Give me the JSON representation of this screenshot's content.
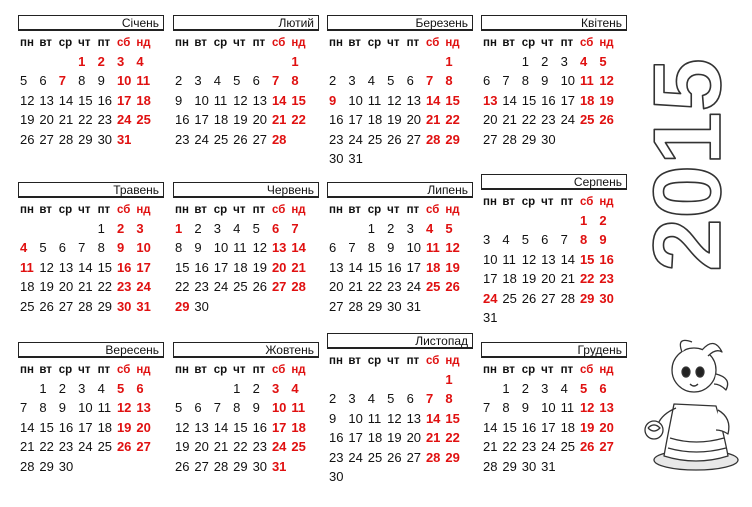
{
  "year": "2015",
  "weekdays": [
    "пн",
    "вт",
    "ср",
    "чт",
    "пт",
    "сб",
    "нд"
  ],
  "colors": {
    "weekend": "#e01010",
    "text": "#111111",
    "border": "#222222"
  },
  "months": [
    {
      "name": "Січень",
      "offset": 3,
      "days": 31,
      "bold": [
        17,
        31
      ],
      "holidays": [
        1,
        2,
        7
      ]
    },
    {
      "name": "Лютий",
      "offset": 6,
      "days": 28,
      "bold": [
        14
      ],
      "holidays": []
    },
    {
      "name": "Березень",
      "offset": 6,
      "days": 31,
      "bold": [],
      "holidays": [
        9
      ]
    },
    {
      "name": "Квітень",
      "offset": 2,
      "days": 30,
      "bold": [],
      "holidays": [
        13
      ]
    },
    {
      "name": "Травень",
      "offset": 4,
      "days": 31,
      "bold": [],
      "holidays": [
        4,
        11
      ]
    },
    {
      "name": "Червень",
      "offset": 0,
      "days": 30,
      "bold": [],
      "holidays": [
        1,
        29
      ]
    },
    {
      "name": "Липень",
      "offset": 2,
      "days": 31,
      "bold": [],
      "holidays": []
    },
    {
      "name": "Серпень",
      "offset": 5,
      "days": 31,
      "bold": [],
      "holidays": [
        24
      ]
    },
    {
      "name": "Вересень",
      "offset": 1,
      "days": 30,
      "bold": [],
      "holidays": []
    },
    {
      "name": "Жовтень",
      "offset": 3,
      "days": 31,
      "bold": [],
      "holidays": []
    },
    {
      "name": "Листопад",
      "offset": 6,
      "days": 30,
      "bold": [],
      "holidays": []
    },
    {
      "name": "Грудень",
      "offset": 1,
      "days": 31,
      "bold": [],
      "holidays": []
    }
  ]
}
